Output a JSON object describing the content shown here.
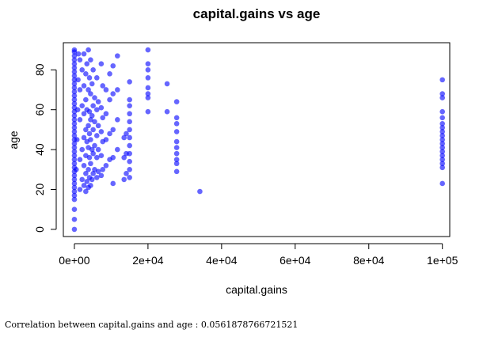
{
  "chart_data": {
    "type": "scatter",
    "title": "capital.gains vs age",
    "xlabel": "capital.gains",
    "ylabel": "age",
    "xlim": [
      -3000,
      102000
    ],
    "ylim": [
      -3.6,
      93.6
    ],
    "x_ticks": [
      0,
      20000,
      40000,
      60000,
      80000,
      100000
    ],
    "x_tick_labels": [
      "0e+00",
      "2e+04",
      "4e+04",
      "6e+04",
      "8e+04",
      "1e+05"
    ],
    "y_ticks": [
      0,
      20,
      40,
      60,
      80
    ],
    "y_tick_labels": [
      "0",
      "20",
      "40",
      "60",
      "80"
    ],
    "point_color": "#0000ff",
    "point_opacity": 0.6,
    "grid": false,
    "series": [
      {
        "points": [
          [
            0,
            0
          ],
          [
            0,
            5
          ],
          [
            0,
            10
          ],
          [
            0,
            15
          ],
          [
            0,
            17
          ],
          [
            0,
            19
          ],
          [
            0,
            21
          ],
          [
            0,
            23
          ],
          [
            0,
            25
          ],
          [
            0,
            27
          ],
          [
            0,
            29
          ],
          [
            0,
            31
          ],
          [
            0,
            33
          ],
          [
            0,
            35
          ],
          [
            0,
            37
          ],
          [
            0,
            39
          ],
          [
            0,
            41
          ],
          [
            0,
            43
          ],
          [
            0,
            45
          ],
          [
            0,
            47
          ],
          [
            0,
            49
          ],
          [
            0,
            51
          ],
          [
            0,
            53
          ],
          [
            0,
            55
          ],
          [
            0,
            57
          ],
          [
            0,
            59
          ],
          [
            0,
            61
          ],
          [
            0,
            63
          ],
          [
            0,
            65
          ],
          [
            0,
            67
          ],
          [
            0,
            69
          ],
          [
            0,
            71
          ],
          [
            0,
            73
          ],
          [
            0,
            75
          ],
          [
            0,
            77
          ],
          [
            0,
            79
          ],
          [
            0,
            81
          ],
          [
            0,
            83
          ],
          [
            0,
            85
          ],
          [
            0,
            87
          ],
          [
            0,
            89
          ],
          [
            0,
            90
          ],
          [
            500,
            30
          ],
          [
            700,
            45
          ],
          [
            900,
            60
          ],
          [
            1000,
            75
          ],
          [
            1100,
            88
          ],
          [
            1500,
            20
          ],
          [
            1500,
            35
          ],
          [
            1500,
            55
          ],
          [
            1500,
            70
          ],
          [
            1500,
            85
          ],
          [
            2100,
            25
          ],
          [
            2100,
            40
          ],
          [
            2100,
            62
          ],
          [
            2100,
            80
          ],
          [
            2600,
            22
          ],
          [
            2600,
            32
          ],
          [
            2600,
            46
          ],
          [
            2600,
            58
          ],
          [
            2600,
            72
          ],
          [
            2600,
            88
          ],
          [
            3100,
            19
          ],
          [
            3100,
            28
          ],
          [
            3100,
            37
          ],
          [
            3100,
            50
          ],
          [
            3100,
            65
          ],
          [
            3100,
            78
          ],
          [
            3400,
            24
          ],
          [
            3400,
            44
          ],
          [
            3400,
            60
          ],
          [
            3400,
            83
          ],
          [
            3800,
            21
          ],
          [
            3800,
            30
          ],
          [
            3800,
            41
          ],
          [
            3800,
            52
          ],
          [
            3800,
            70
          ],
          [
            3800,
            90
          ],
          [
            4100,
            26
          ],
          [
            4100,
            36
          ],
          [
            4100,
            48
          ],
          [
            4100,
            59
          ],
          [
            4100,
            76
          ],
          [
            4400,
            22
          ],
          [
            4400,
            33
          ],
          [
            4400,
            45
          ],
          [
            4400,
            55
          ],
          [
            4400,
            68
          ],
          [
            4400,
            85
          ],
          [
            4800,
            25
          ],
          [
            4800,
            40
          ],
          [
            4800,
            57
          ],
          [
            4800,
            73
          ],
          [
            5100,
            28
          ],
          [
            5100,
            38
          ],
          [
            5100,
            50
          ],
          [
            5100,
            62
          ],
          [
            5100,
            80
          ],
          [
            5500,
            30
          ],
          [
            5500,
            42
          ],
          [
            5500,
            54
          ],
          [
            5500,
            66
          ],
          [
            6100,
            26
          ],
          [
            6100,
            36
          ],
          [
            6100,
            47
          ],
          [
            6100,
            60
          ],
          [
            6100,
            76
          ],
          [
            6500,
            29
          ],
          [
            6500,
            40
          ],
          [
            6500,
            52
          ],
          [
            6500,
            64
          ],
          [
            7300,
            27
          ],
          [
            7300,
            37
          ],
          [
            7300,
            49
          ],
          [
            7300,
            61
          ],
          [
            7300,
            83
          ],
          [
            7700,
            30
          ],
          [
            7700,
            44
          ],
          [
            7700,
            56
          ],
          [
            7700,
            72
          ],
          [
            8600,
            32
          ],
          [
            8600,
            45
          ],
          [
            8600,
            58
          ],
          [
            8600,
            70
          ],
          [
            9600,
            35
          ],
          [
            9600,
            48
          ],
          [
            9600,
            65
          ],
          [
            9600,
            78
          ],
          [
            10500,
            23
          ],
          [
            10500,
            36
          ],
          [
            10500,
            50
          ],
          [
            10500,
            68
          ],
          [
            10500,
            82
          ],
          [
            11700,
            40
          ],
          [
            11700,
            55
          ],
          [
            11700,
            70
          ],
          [
            11700,
            87
          ],
          [
            13500,
            25
          ],
          [
            13500,
            36
          ],
          [
            13500,
            46
          ],
          [
            14100,
            28
          ],
          [
            14100,
            38
          ],
          [
            14100,
            48
          ],
          [
            15000,
            26
          ],
          [
            15000,
            30
          ],
          [
            15000,
            34
          ],
          [
            15000,
            38
          ],
          [
            15000,
            42
          ],
          [
            15000,
            46
          ],
          [
            15000,
            50
          ],
          [
            15000,
            54
          ],
          [
            15000,
            58
          ],
          [
            15000,
            62
          ],
          [
            15000,
            65
          ],
          [
            15000,
            74
          ],
          [
            20000,
            59
          ],
          [
            20000,
            66
          ],
          [
            20000,
            68
          ],
          [
            20000,
            71
          ],
          [
            20000,
            76
          ],
          [
            20000,
            80
          ],
          [
            20000,
            83
          ],
          [
            20000,
            90
          ],
          [
            25200,
            59
          ],
          [
            25200,
            73
          ],
          [
            27800,
            29
          ],
          [
            27800,
            33
          ],
          [
            27800,
            35
          ],
          [
            27800,
            38
          ],
          [
            27800,
            41
          ],
          [
            27800,
            44
          ],
          [
            27800,
            49
          ],
          [
            27800,
            53
          ],
          [
            27800,
            56
          ],
          [
            27800,
            64
          ],
          [
            34100,
            19
          ],
          [
            100000,
            23
          ],
          [
            100000,
            31
          ],
          [
            100000,
            33
          ],
          [
            100000,
            35
          ],
          [
            100000,
            37
          ],
          [
            100000,
            39
          ],
          [
            100000,
            41
          ],
          [
            100000,
            43
          ],
          [
            100000,
            45
          ],
          [
            100000,
            47
          ],
          [
            100000,
            49
          ],
          [
            100000,
            51
          ],
          [
            100000,
            53
          ],
          [
            100000,
            56
          ],
          [
            100000,
            59
          ],
          [
            100000,
            66
          ],
          [
            100000,
            68
          ],
          [
            100000,
            75
          ]
        ]
      }
    ]
  },
  "footer": {
    "caption": "Correlation between capital.gains and age : 0.0561878766721521"
  }
}
